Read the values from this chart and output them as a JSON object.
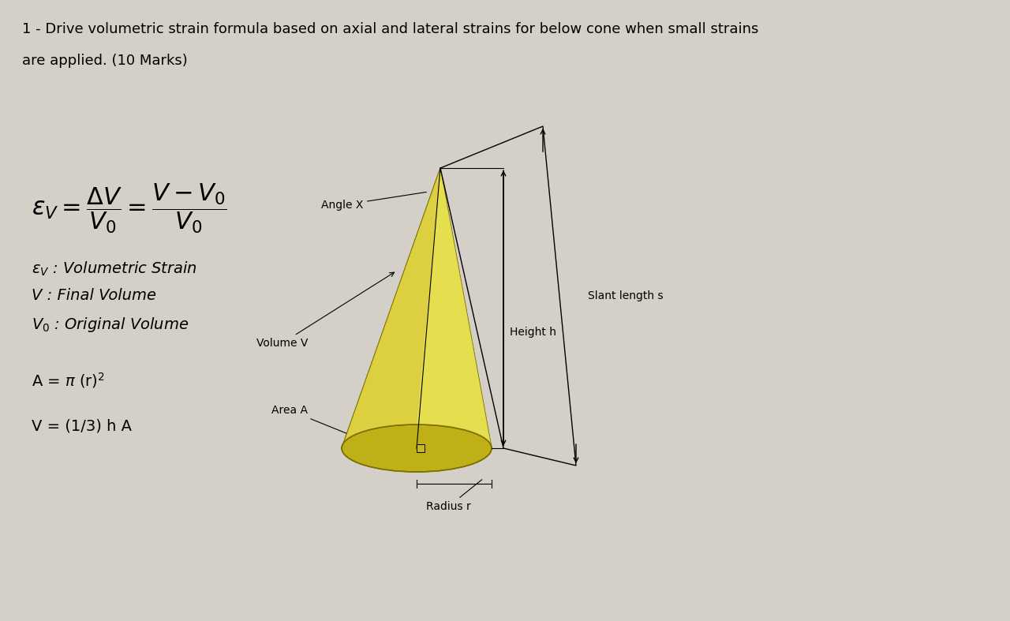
{
  "bg_color": "#ccc8c0",
  "title_line1": "1 - Drive volumetric strain formula based on axial and lateral strains for below cone when small strains",
  "title_line2": "are applied. (10 Marks)",
  "def1": "$\\varepsilon_V$ : Volumetric Strain",
  "def2": "V : Final Volume",
  "def3": "$V_0$ : Original Volume",
  "formula2": "A = π (r)²",
  "formula3": "V = (1/3) h A",
  "label_angle": "Angle X",
  "label_volume": "Volume V",
  "label_height": "Height h",
  "label_slant": "Slant length s",
  "label_area": "Area A",
  "label_radius": "Radius r",
  "cone_yellow": "#d4c830",
  "cone_yellow_light": "#e8dc50",
  "cone_yellow_dark": "#b8a820",
  "cone_edge": "#7a7000"
}
